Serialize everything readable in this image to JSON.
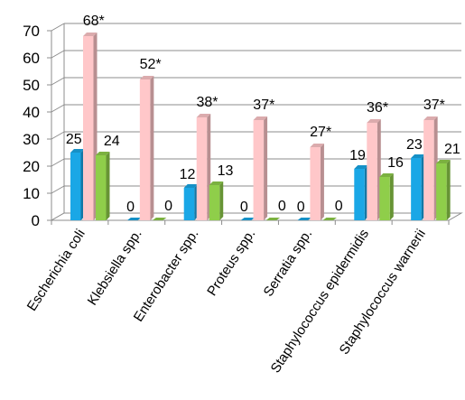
{
  "chart_data": {
    "type": "bar",
    "categories": [
      "Escherichia coli",
      "Klebsiella spp.",
      "Enterobacter spp.",
      "Proteus spp.",
      "Serratia spp.",
      "Staphylococcus epidermidis",
      "Staphylococcus warnerii"
    ],
    "series": [
      {
        "values": [
          25,
          0,
          12,
          0,
          0,
          19,
          23
        ],
        "labels": [
          "25",
          "0",
          "12",
          "0",
          "0",
          "19",
          "23"
        ],
        "color": "#1aa7e6"
      },
      {
        "values": [
          68,
          52,
          38,
          37,
          27,
          36,
          37
        ],
        "labels": [
          "68*",
          "52*",
          "38*",
          "37*",
          "27*",
          "36*",
          "37*"
        ],
        "color": "#ffc7c9"
      },
      {
        "values": [
          24,
          0,
          13,
          0,
          0,
          16,
          21
        ],
        "labels": [
          "24",
          "0",
          "13",
          "0",
          "0",
          "16",
          "21"
        ],
        "color": "#8fce4a"
      }
    ],
    "yticks": [
      "0",
      "10",
      "20",
      "30",
      "40",
      "50",
      "60",
      "70"
    ],
    "ylim": [
      0,
      70
    ],
    "grid": true,
    "legend": "none",
    "three_d": true
  }
}
